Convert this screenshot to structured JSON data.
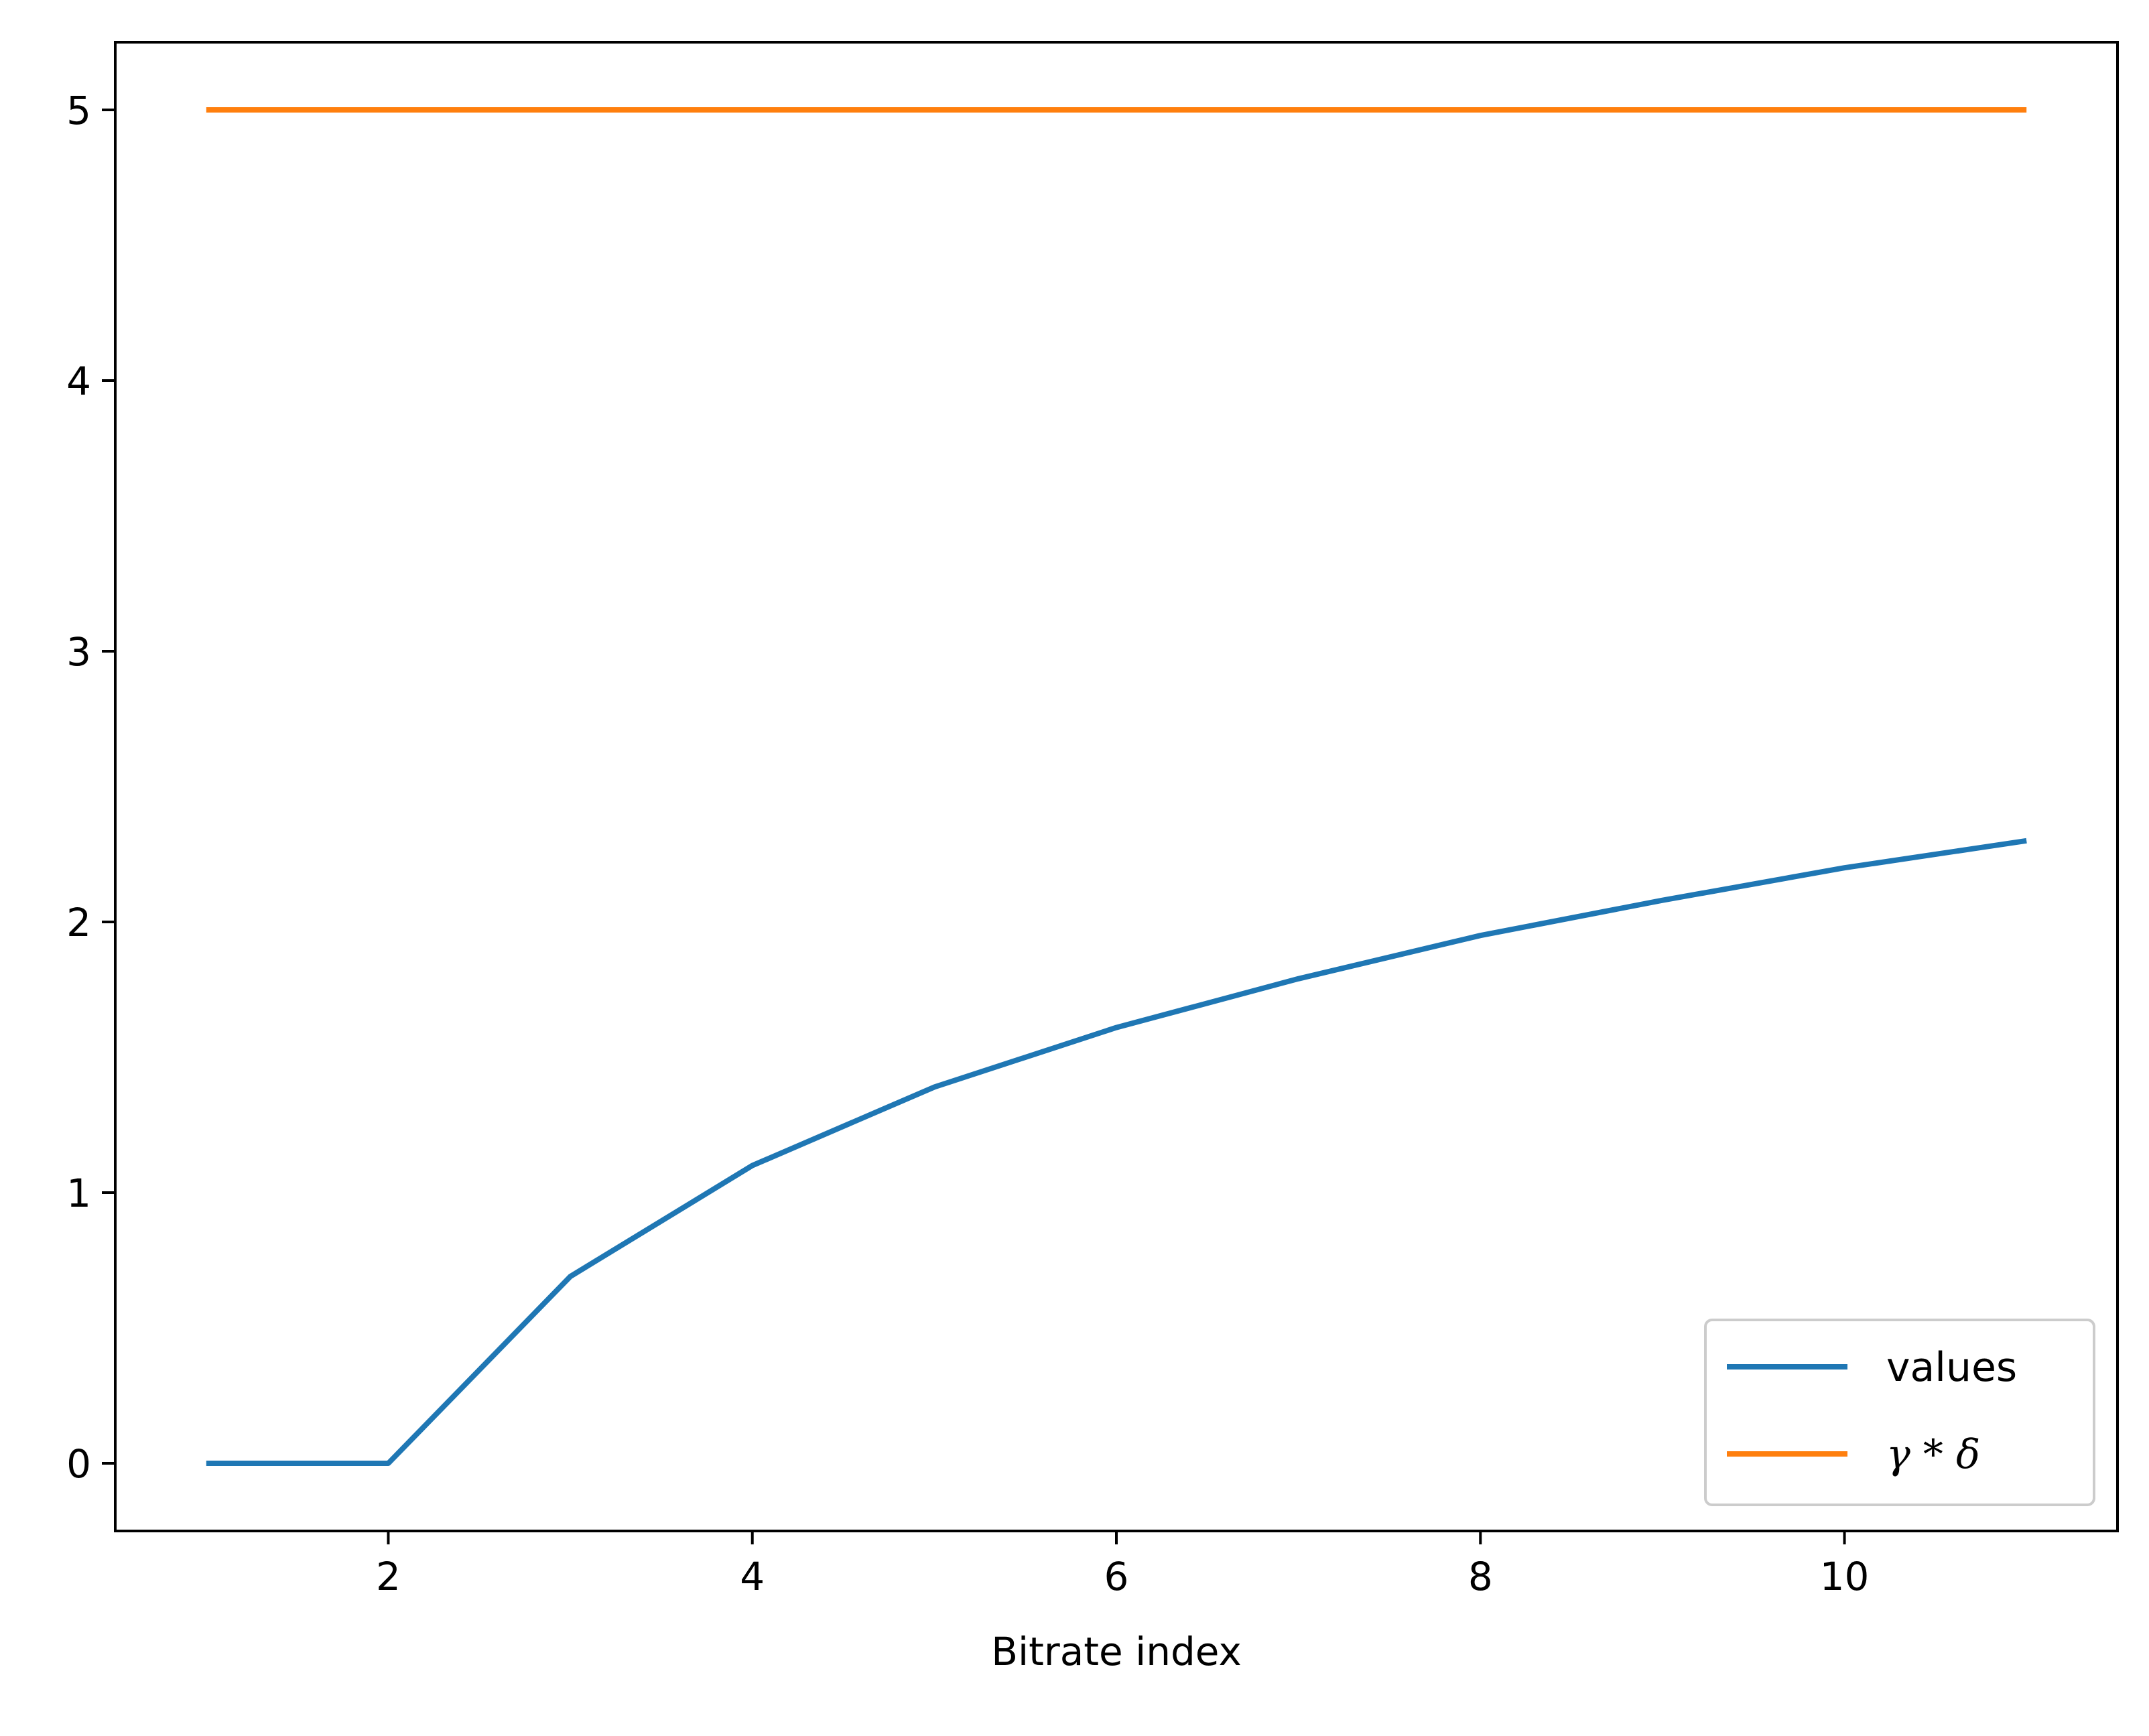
{
  "chart_data": {
    "type": "line",
    "title": "",
    "xlabel": "Bitrate index",
    "ylabel": "",
    "xlim": [
      0.5,
      11.5
    ],
    "ylim": [
      -0.25,
      5.25
    ],
    "xticks": [
      2,
      4,
      6,
      8,
      10
    ],
    "yticks": [
      0,
      1,
      2,
      3,
      4,
      5
    ],
    "grid": false,
    "legend_position": "lower-right",
    "x": [
      1,
      2,
      3,
      4,
      5,
      6,
      7,
      8,
      9,
      10,
      11
    ],
    "series": [
      {
        "name": "values",
        "color": "#1f77b4",
        "values": [
          0,
          0,
          0.69,
          1.1,
          1.39,
          1.61,
          1.79,
          1.95,
          2.08,
          2.2,
          2.3
        ]
      },
      {
        "name": "γ * δ",
        "color": "#ff7f0e",
        "values": [
          5,
          5,
          5,
          5,
          5,
          5,
          5,
          5,
          5,
          5,
          5
        ]
      }
    ]
  }
}
